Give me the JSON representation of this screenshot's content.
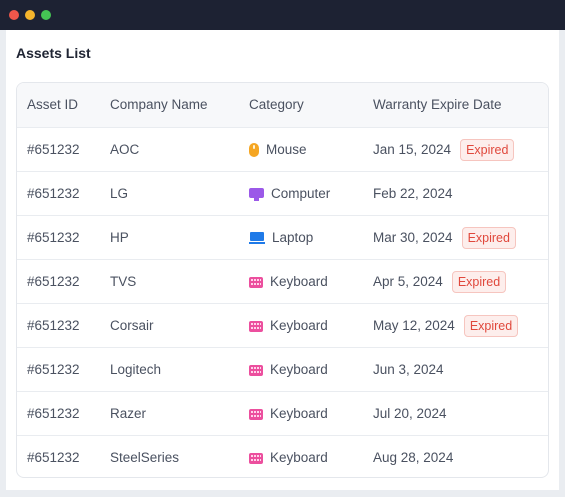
{
  "window": {
    "title": ""
  },
  "page": {
    "title": "Assets List"
  },
  "table": {
    "headers": {
      "asset_id": "Asset ID",
      "company": "Company Name",
      "category": "Category",
      "warranty": "Warranty Expire Date"
    },
    "rows": [
      {
        "asset_id": "#651232",
        "company": "AOC",
        "category": "Mouse",
        "icon": "mouse-icon",
        "date": "Jan 15, 2024",
        "status": "Expired"
      },
      {
        "asset_id": "#651232",
        "company": "LG",
        "category": "Computer",
        "icon": "computer-icon",
        "date": "Feb 22, 2024",
        "status": ""
      },
      {
        "asset_id": "#651232",
        "company": "HP",
        "category": "Laptop",
        "icon": "laptop-icon",
        "date": "Mar 30, 2024",
        "status": "Expired"
      },
      {
        "asset_id": "#651232",
        "company": "TVS",
        "category": "Keyboard",
        "icon": "keyboard-icon",
        "date": "Apr 5, 2024",
        "status": "Expired"
      },
      {
        "asset_id": "#651232",
        "company": "Corsair",
        "category": "Keyboard",
        "icon": "keyboard-icon",
        "date": "May 12, 2024",
        "status": "Expired"
      },
      {
        "asset_id": "#651232",
        "company": "Logitech",
        "category": "Keyboard",
        "icon": "keyboard-icon",
        "date": "Jun 3, 2024",
        "status": ""
      },
      {
        "asset_id": "#651232",
        "company": "Razer",
        "category": "Keyboard",
        "icon": "keyboard-icon",
        "date": "Jul 20, 2024",
        "status": ""
      },
      {
        "asset_id": "#651232",
        "company": "SteelSeries",
        "category": "Keyboard",
        "icon": "keyboard-icon",
        "date": "Aug 28, 2024",
        "status": ""
      }
    ]
  },
  "colors": {
    "titlebar": "#1d2233",
    "expired_text": "#e0483c",
    "expired_bg": "#fdeeec",
    "mouse": "#f5a623",
    "computer": "#9b59e8",
    "laptop": "#1f7ae8",
    "keyboard": "#ec4f9e"
  }
}
